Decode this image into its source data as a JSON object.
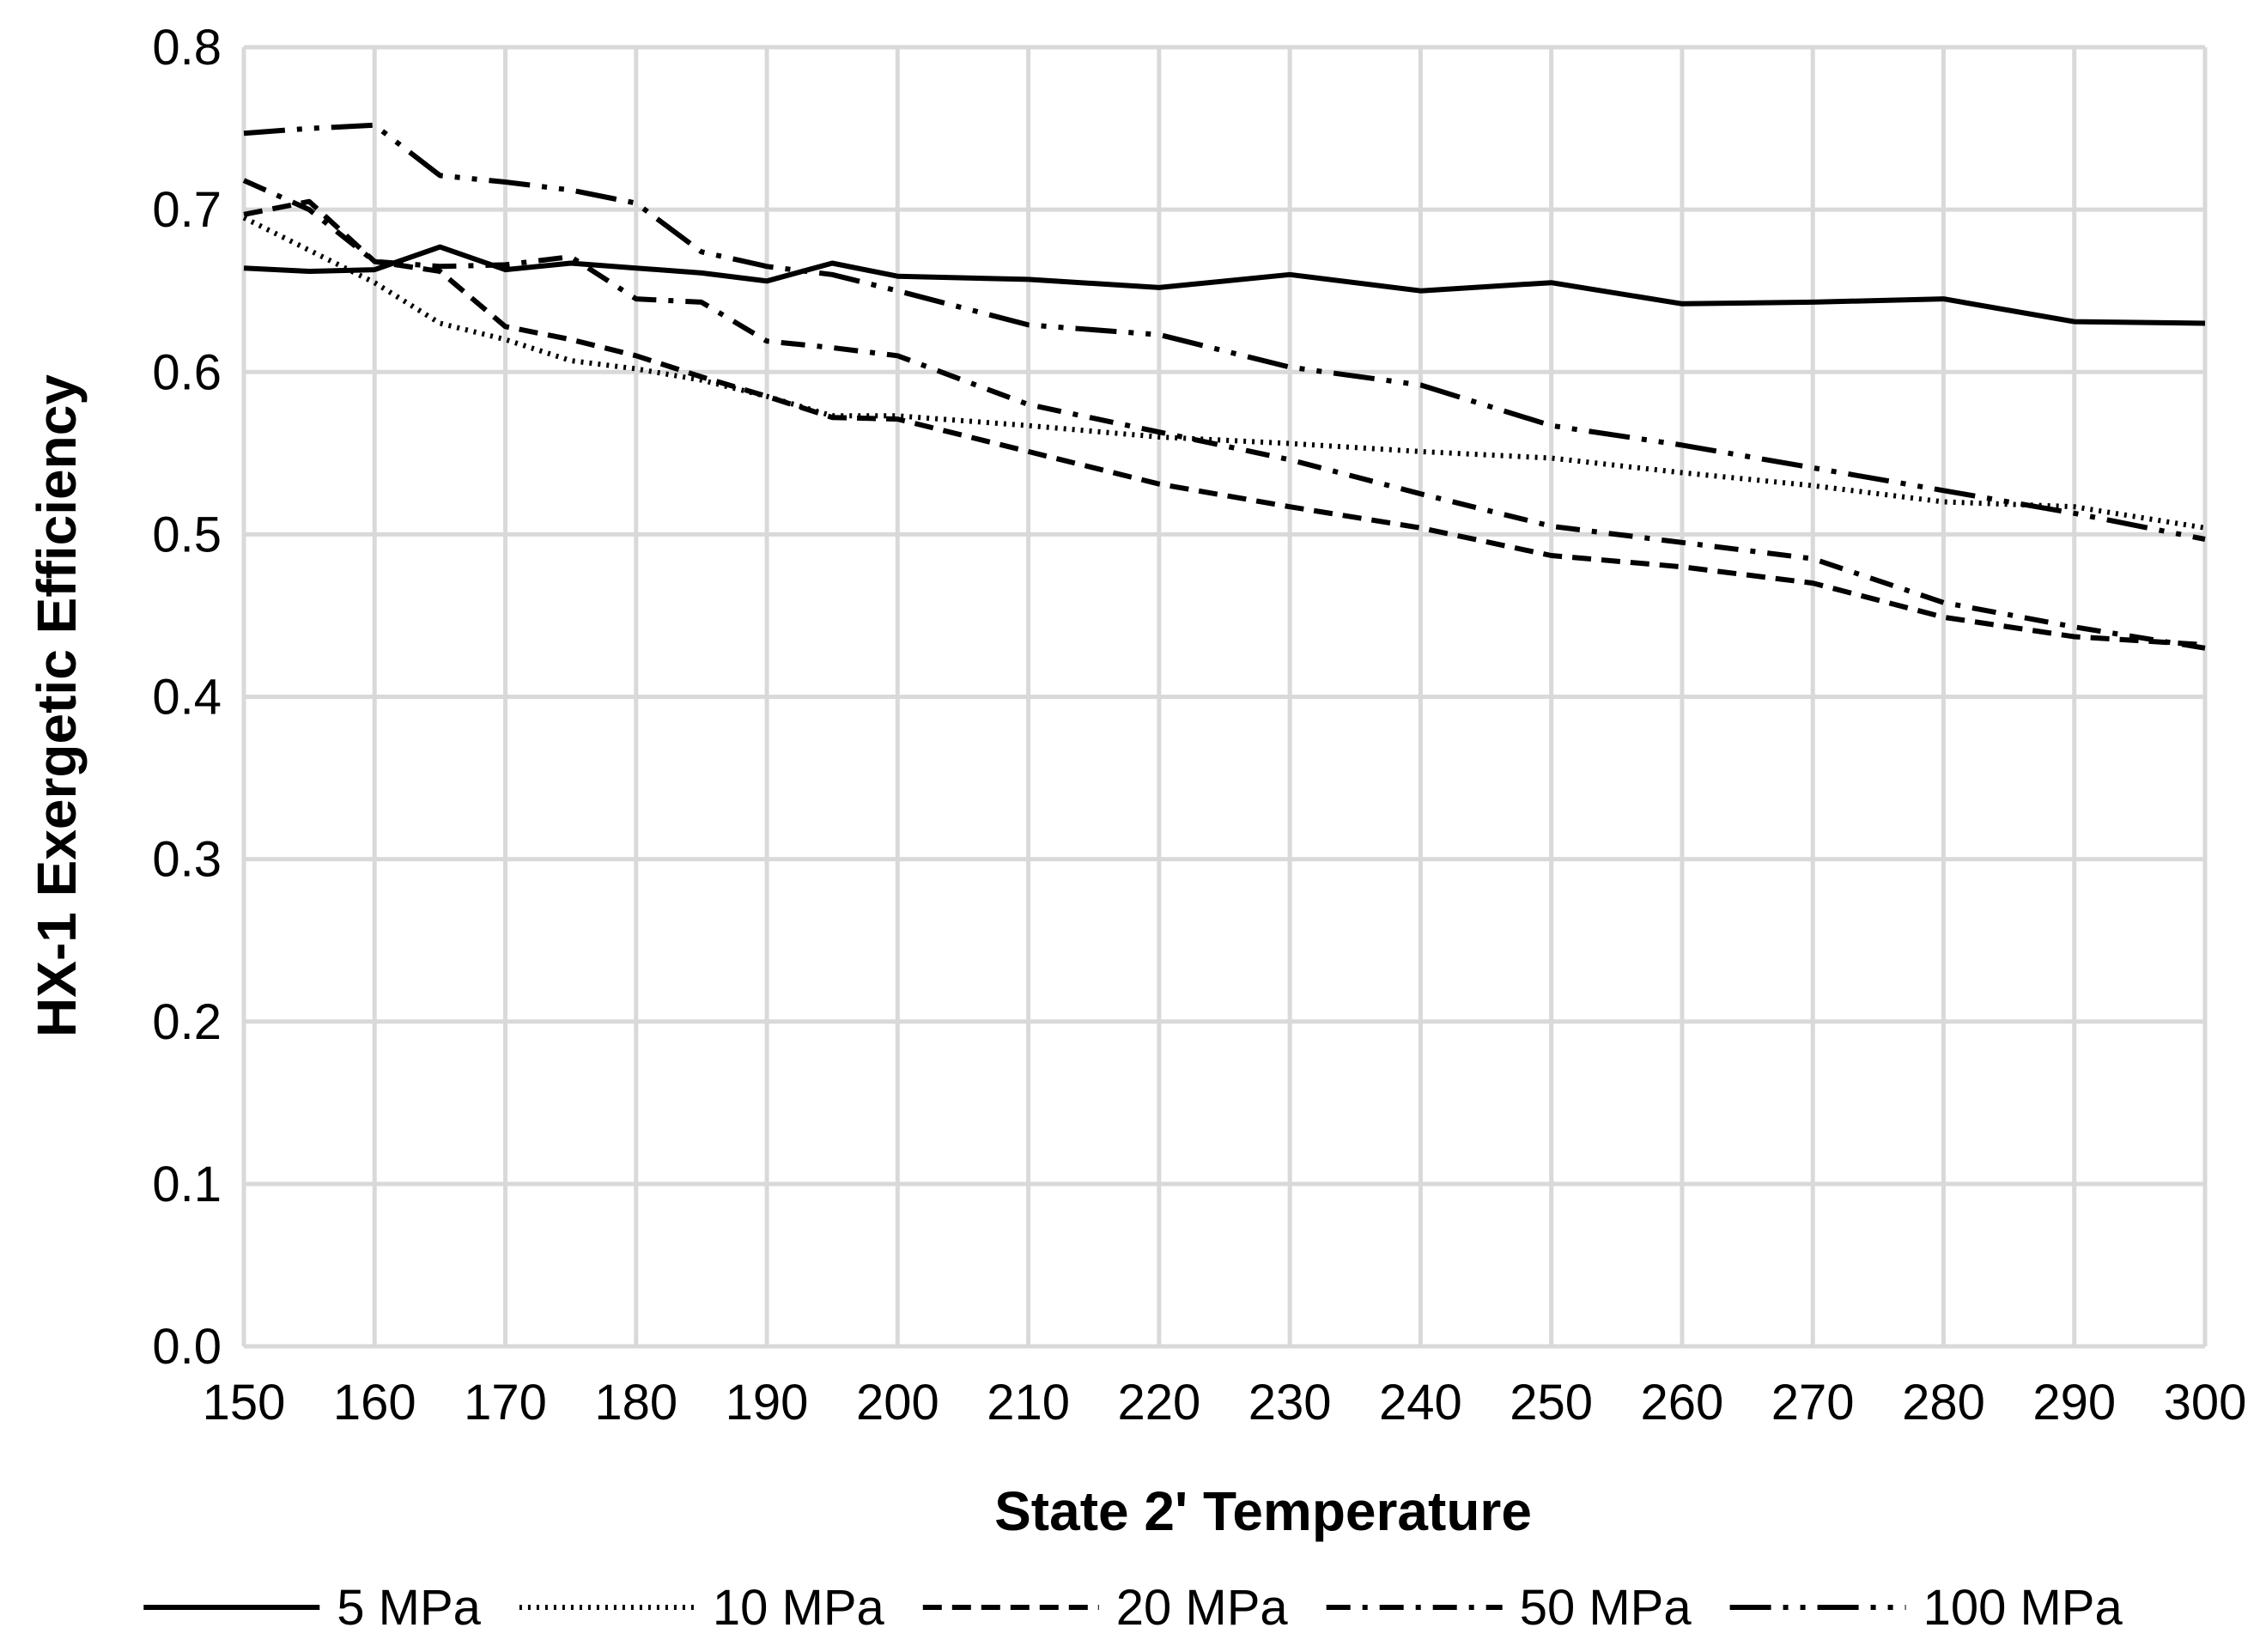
{
  "chart_data": {
    "type": "line",
    "title": "",
    "xlabel": "State 2' Temperature",
    "ylabel": "HX-1 Exergetic Efficiency",
    "xlim": [
      150,
      300
    ],
    "ylim": [
      0.0,
      0.8
    ],
    "x_ticks": [
      "150",
      "160",
      "170",
      "180",
      "190",
      "200",
      "210",
      "220",
      "230",
      "240",
      "250",
      "260",
      "270",
      "280",
      "290",
      "300"
    ],
    "y_ticks": [
      "0.0",
      "0.1",
      "0.2",
      "0.3",
      "0.4",
      "0.5",
      "0.6",
      "0.7",
      "0.8"
    ],
    "grid": true,
    "legend_position": "bottom",
    "x": [
      150,
      155,
      160,
      165,
      170,
      175,
      180,
      185,
      190,
      195,
      200,
      210,
      220,
      230,
      240,
      250,
      260,
      270,
      280,
      290,
      300
    ],
    "series": [
      {
        "name": "5 MPa",
        "style": "solid",
        "values": [
          0.664,
          0.662,
          0.663,
          0.677,
          0.663,
          0.667,
          0.664,
          0.661,
          0.656,
          0.667,
          0.659,
          0.657,
          0.652,
          0.66,
          0.65,
          0.655,
          0.642,
          0.643,
          0.645,
          0.631,
          0.63
        ]
      },
      {
        "name": "10 MPa",
        "style": "dotted",
        "values": [
          0.695,
          0.675,
          0.655,
          0.63,
          0.62,
          0.607,
          0.602,
          0.595,
          0.585,
          0.573,
          0.573,
          0.567,
          0.56,
          0.556,
          0.551,
          0.547,
          0.538,
          0.53,
          0.52,
          0.517,
          0.504
        ]
      },
      {
        "name": "20 MPa",
        "style": "dashed",
        "values": [
          0.697,
          0.705,
          0.668,
          0.662,
          0.628,
          0.62,
          0.61,
          0.597,
          0.585,
          0.572,
          0.571,
          0.551,
          0.531,
          0.517,
          0.504,
          0.487,
          0.48,
          0.47,
          0.449,
          0.437,
          0.432
        ]
      },
      {
        "name": "50 MPa",
        "style": "dash-dot",
        "values": [
          0.718,
          0.7,
          0.668,
          0.665,
          0.666,
          0.671,
          0.645,
          0.643,
          0.619,
          0.615,
          0.61,
          0.58,
          0.563,
          0.546,
          0.525,
          0.505,
          0.495,
          0.485,
          0.458,
          0.443,
          0.43
        ]
      },
      {
        "name": "100 MPa",
        "style": "dash-dot-dot",
        "values": [
          0.747,
          0.75,
          0.752,
          0.721,
          0.717,
          0.712,
          0.704,
          0.674,
          0.665,
          0.66,
          0.65,
          0.629,
          0.623,
          0.603,
          0.592,
          0.567,
          0.555,
          0.541,
          0.527,
          0.513,
          0.497
        ]
      }
    ]
  }
}
